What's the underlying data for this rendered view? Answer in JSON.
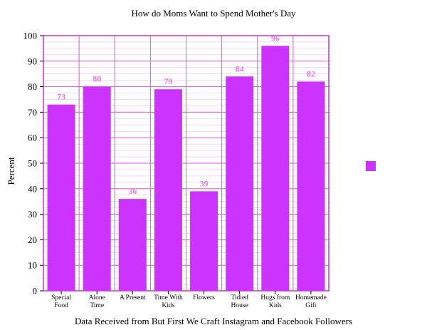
{
  "chart_data": {
    "type": "bar",
    "title": "How do Moms Want to Spend Mother's Day",
    "xlabel": "Data Received from But First We Craft Instagram and Facebook Followers",
    "ylabel": "Percent",
    "categories": [
      [
        "Special",
        "Food"
      ],
      [
        "Alone",
        "Time"
      ],
      [
        "A Present"
      ],
      [
        "Time With",
        "Kids"
      ],
      [
        "Flowers"
      ],
      [
        "Tidied",
        "House"
      ],
      [
        "Hugs from",
        "Kids"
      ],
      [
        "Homemade",
        "Gift"
      ]
    ],
    "values": [
      73,
      80,
      36,
      79,
      39,
      84,
      96,
      82
    ],
    "ylim": [
      0,
      100
    ],
    "yticks": [
      0,
      10,
      20,
      30,
      40,
      50,
      60,
      70,
      80,
      90,
      100
    ],
    "grid": true,
    "legend": "right",
    "colors": {
      "bar": "#cc33ff",
      "grid": "#dd55dd",
      "frame": "#cc33cc",
      "data_label": "#ee77ee"
    }
  }
}
